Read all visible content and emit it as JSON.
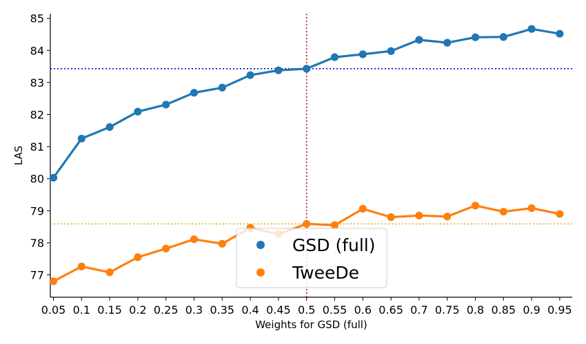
{
  "chart_data": {
    "type": "line",
    "title": "",
    "xlabel": "Weights for GSD (full)",
    "ylabel": "LAS",
    "categories": [
      "0.05",
      "0.1",
      "0.15",
      "0.2",
      "0.25",
      "0.3",
      "0.35",
      "0.4",
      "0.45",
      "0.5",
      "0.55",
      "0.6",
      "0.65",
      "0.7",
      "0.75",
      "0.8",
      "0.85",
      "0.9",
      "0.95"
    ],
    "ylim": [
      76.3,
      85.2
    ],
    "yticks": [
      77,
      78,
      79,
      80,
      81,
      82,
      83,
      84,
      85
    ],
    "grid": false,
    "legend_position": "lower-center",
    "series": [
      {
        "name": "GSD (full)",
        "color": "#1f77b4",
        "values": [
          80.03,
          81.25,
          81.61,
          82.09,
          82.31,
          82.68,
          82.84,
          83.23,
          83.38,
          83.43,
          83.79,
          83.88,
          83.98,
          84.33,
          84.24,
          84.41,
          84.42,
          84.67,
          84.52
        ]
      },
      {
        "name": "TweeDe",
        "color": "#ff7f0e",
        "values": [
          76.8,
          77.26,
          77.08,
          77.55,
          77.82,
          78.11,
          77.97,
          78.47,
          78.27,
          78.59,
          78.55,
          79.06,
          78.8,
          78.85,
          78.82,
          79.16,
          78.97,
          79.08,
          78.9
        ]
      }
    ],
    "reference_lines": [
      {
        "orientation": "horizontal",
        "value": 83.43,
        "color": "#0000cc",
        "style": "dotted"
      },
      {
        "orientation": "horizontal",
        "value": 78.59,
        "color": "#e6a817",
        "style": "dotted"
      },
      {
        "orientation": "vertical",
        "category": "0.5",
        "color": "#cc0033",
        "style": "dotted"
      }
    ]
  }
}
